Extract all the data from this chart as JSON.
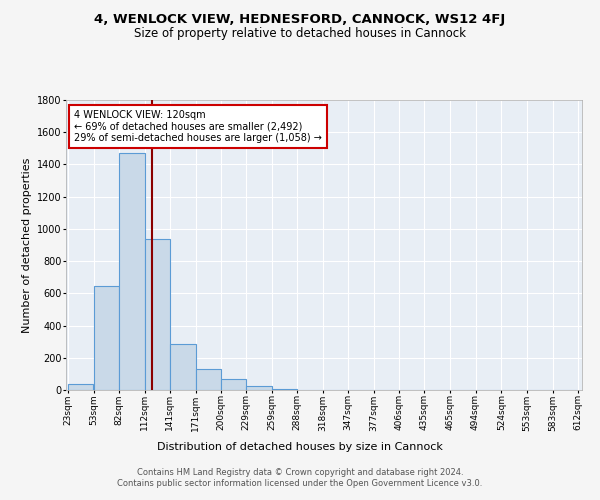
{
  "title": "4, WENLOCK VIEW, HEDNESFORD, CANNOCK, WS12 4FJ",
  "subtitle": "Size of property relative to detached houses in Cannock",
  "xlabel": "Distribution of detached houses by size in Cannock",
  "ylabel": "Number of detached properties",
  "bar_left_edges": [
    23,
    53,
    82,
    112,
    141,
    171,
    200,
    229,
    259,
    288,
    318,
    347,
    377,
    406,
    435,
    465,
    494,
    524,
    553,
    583
  ],
  "bar_widths": [
    30,
    29,
    30,
    29,
    30,
    29,
    29,
    30,
    29,
    30,
    29,
    30,
    29,
    29,
    30,
    29,
    30,
    29,
    30,
    29
  ],
  "bar_heights": [
    40,
    645,
    1470,
    940,
    285,
    130,
    70,
    25,
    5,
    2,
    1,
    1,
    0,
    0,
    0,
    0,
    0,
    0,
    0,
    0
  ],
  "bar_color": "#c9d9e8",
  "bar_edge_color": "#5b9bd5",
  "tick_labels": [
    "23sqm",
    "53sqm",
    "82sqm",
    "112sqm",
    "141sqm",
    "171sqm",
    "200sqm",
    "229sqm",
    "259sqm",
    "288sqm",
    "318sqm",
    "347sqm",
    "377sqm",
    "406sqm",
    "435sqm",
    "465sqm",
    "494sqm",
    "524sqm",
    "553sqm",
    "583sqm",
    "612sqm"
  ],
  "property_size": 120,
  "vline_color": "#8b0000",
  "annotation_text": "4 WENLOCK VIEW: 120sqm\n← 69% of detached houses are smaller (2,492)\n29% of semi-detached houses are larger (1,058) →",
  "annotation_box_color": "#ffffff",
  "annotation_box_edge_color": "#cc0000",
  "ylim": [
    0,
    1800
  ],
  "yticks": [
    0,
    200,
    400,
    600,
    800,
    1000,
    1200,
    1400,
    1600,
    1800
  ],
  "background_color": "#e8eef5",
  "grid_color": "#ffffff",
  "fig_background": "#f5f5f5",
  "footer": "Contains HM Land Registry data © Crown copyright and database right 2024.\nContains public sector information licensed under the Open Government Licence v3.0.",
  "title_fontsize": 9.5,
  "subtitle_fontsize": 8.5,
  "ylabel_fontsize": 8,
  "xlabel_fontsize": 8,
  "tick_fontsize": 6.5,
  "annotation_fontsize": 7,
  "footer_fontsize": 6
}
